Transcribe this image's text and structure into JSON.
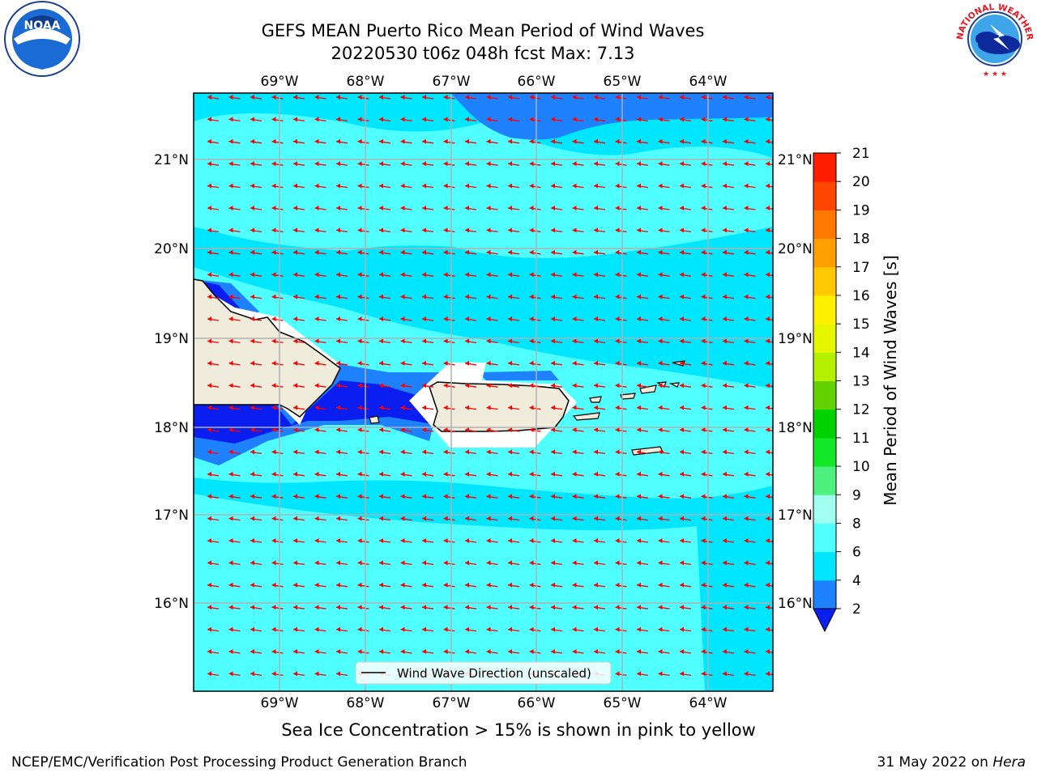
{
  "header": {
    "title_line1": "GEFS MEAN Puerto Rico Mean Period of Wind Waves",
    "title_line2": "20220530 t06z 048h fcst   Max: 7.13"
  },
  "logos": {
    "left": "NOAA",
    "right_ring": "NATIONAL WEATHER SERVICE"
  },
  "map": {
    "lon_labels": [
      "69°W",
      "68°W",
      "67°W",
      "66°W",
      "65°W",
      "64°W"
    ],
    "lat_labels": [
      "21°N",
      "20°N",
      "19°N",
      "18°N",
      "17°N",
      "16°N"
    ],
    "arrow_color": "#ff0000",
    "land_color": "#efecdc",
    "legend_text": "Wind Wave Direction (unscaled)"
  },
  "colorbar": {
    "label": "Mean Period of Wind Waves [s]",
    "ticks": [
      "2",
      "4",
      "6",
      "8",
      "9",
      "10",
      "11",
      "12",
      "13",
      "14",
      "15",
      "16",
      "17",
      "18",
      "19",
      "20",
      "21"
    ],
    "colors": [
      "#0a1ef0",
      "#1e82ff",
      "#00e6ff",
      "#50ffff",
      "#a0fff0",
      "#50f080",
      "#14e628",
      "#00d200",
      "#64d200",
      "#b4f000",
      "#e6f500",
      "#fff000",
      "#ffc800",
      "#ffa000",
      "#ff7800",
      "#ff4600",
      "#ff1e00",
      "#ff0000"
    ]
  },
  "footer": {
    "sea_ice_note": "Sea Ice Concentration > 15% is shown in pink to yellow",
    "left": "NCEP/EMC/Verification Post Processing Product Generation Branch",
    "right_date": "31 May 2022 on ",
    "right_host": "Hera"
  }
}
